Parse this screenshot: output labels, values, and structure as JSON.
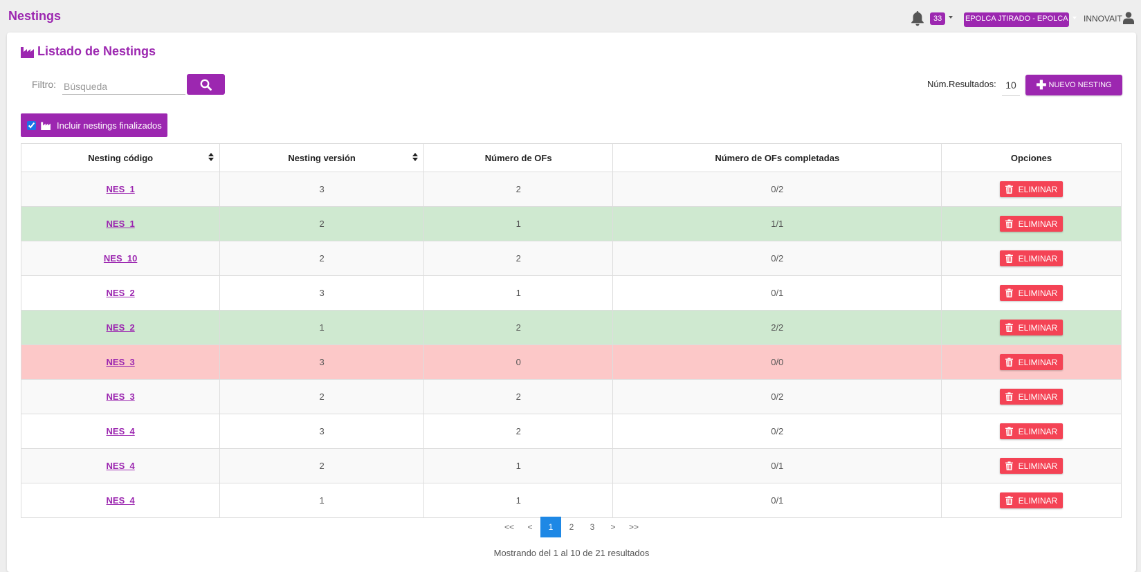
{
  "header": {
    "app_title": "Nestings",
    "notification_count": "33",
    "company": "EPOLCA JTIRADO - EPOLCA",
    "user": "INNOVAIT"
  },
  "card": {
    "title": "Listado de Nestings",
    "filter_label": "Filtro:",
    "search_placeholder": "Búsqueda",
    "results_label": "Núm.Resultados:",
    "results_value": "10",
    "new_button": "NUEVO NESTING",
    "include_finished": "Incluir nestings finalizados",
    "include_finished_checked": true
  },
  "table": {
    "headers": [
      "Nesting código",
      "Nesting versión",
      "Número de OFs",
      "Número de OFs completadas",
      "Opciones"
    ],
    "delete_label": "ELIMINAR",
    "rows": [
      {
        "code": "NES_1",
        "version": "3",
        "ofs": "2",
        "completed": "0/2",
        "status": "normal"
      },
      {
        "code": "NES_1",
        "version": "2",
        "ofs": "1",
        "completed": "1/1",
        "status": "ok"
      },
      {
        "code": "NES_10",
        "version": "2",
        "ofs": "2",
        "completed": "0/2",
        "status": "normal"
      },
      {
        "code": "NES_2",
        "version": "3",
        "ofs": "1",
        "completed": "0/1",
        "status": "normal"
      },
      {
        "code": "NES_2",
        "version": "1",
        "ofs": "2",
        "completed": "2/2",
        "status": "ok"
      },
      {
        "code": "NES_3",
        "version": "3",
        "ofs": "0",
        "completed": "0/0",
        "status": "err"
      },
      {
        "code": "NES_3",
        "version": "2",
        "ofs": "2",
        "completed": "0/2",
        "status": "normal"
      },
      {
        "code": "NES_4",
        "version": "3",
        "ofs": "2",
        "completed": "0/2",
        "status": "normal"
      },
      {
        "code": "NES_4",
        "version": "2",
        "ofs": "1",
        "completed": "0/1",
        "status": "normal"
      },
      {
        "code": "NES_4",
        "version": "1",
        "ofs": "1",
        "completed": "0/1",
        "status": "normal"
      }
    ]
  },
  "pagination": {
    "first": "<<",
    "prev": "<",
    "pages": [
      "1",
      "2",
      "3"
    ],
    "active_page": "1",
    "next": ">",
    "last": ">>",
    "summary": "Mostrando del 1 al 10 de 21 resultados"
  },
  "colors": {
    "accent": "#9c27b0",
    "ok_row": "#cfe9d0",
    "error_row": "#fcc8c8",
    "delete": "#f44355",
    "active_page": "#1e88e5"
  }
}
